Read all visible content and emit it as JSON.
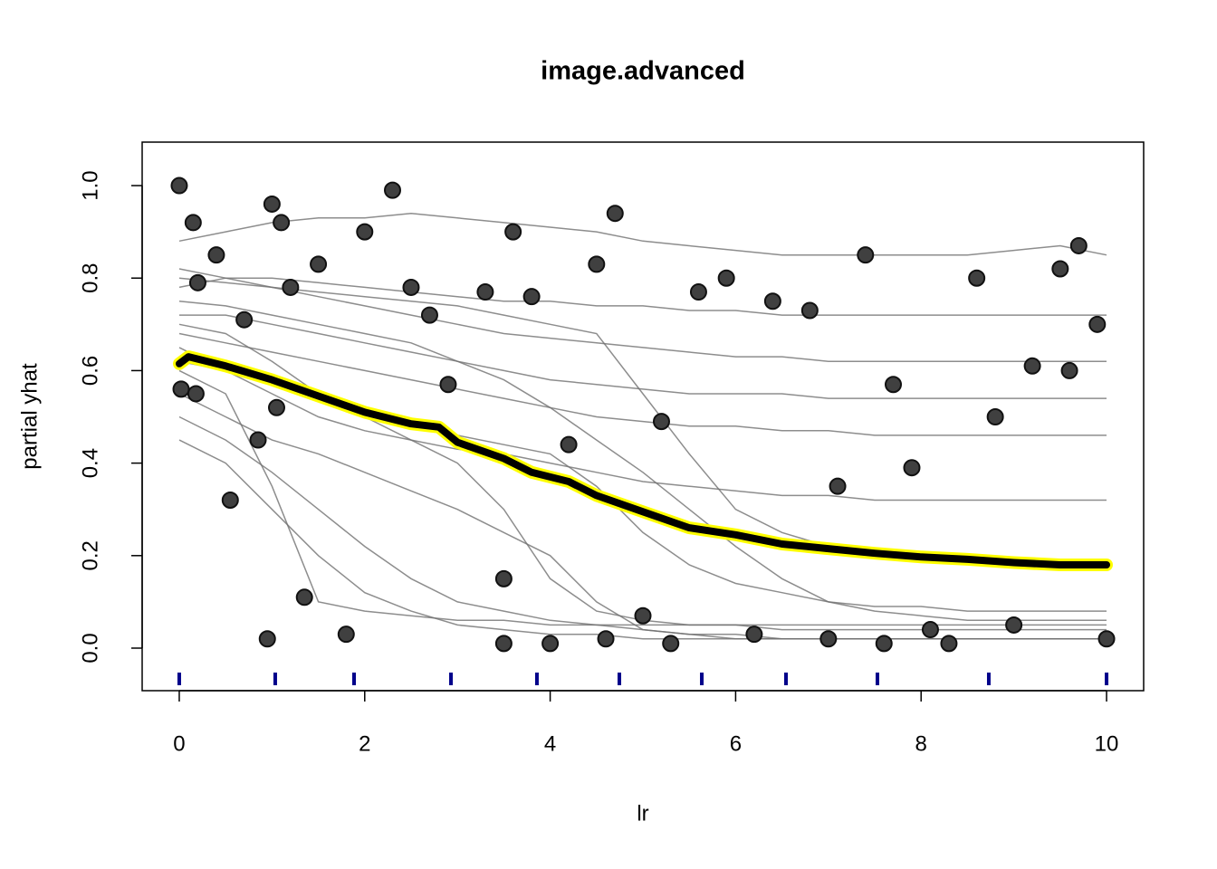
{
  "chart_data": {
    "type": "ice",
    "title": "image.advanced",
    "x_label": "lr",
    "y_label": "partial yhat",
    "xlim": [
      -0.4,
      10.4
    ],
    "ylim": [
      -0.092,
      1.094
    ],
    "xticks": [
      0,
      2,
      4,
      6,
      8,
      10
    ],
    "yticks": [
      {
        "value": 0,
        "label": "0.0"
      },
      0.2,
      0.4,
      0.6,
      0.8,
      {
        "value": 1,
        "label": "1.0"
      }
    ],
    "ice_color": "#707070",
    "ice_x": [
      0,
      0.5,
      1,
      1.5,
      2,
      2.5,
      3,
      3.5,
      4,
      4.5,
      5,
      5.5,
      6,
      6.5,
      7,
      7.5,
      8,
      8.5,
      9,
      9.5,
      10
    ],
    "ice_lines": [
      {
        "values": [
          0.88,
          0.9,
          0.92,
          0.93,
          0.93,
          0.94,
          0.93,
          0.92,
          0.91,
          0.9,
          0.88,
          0.87,
          0.86,
          0.85,
          0.85,
          0.85,
          0.85,
          0.85,
          0.86,
          0.87,
          0.85
        ]
      },
      {
        "values": [
          0.78,
          0.8,
          0.8,
          0.79,
          0.78,
          0.77,
          0.76,
          0.75,
          0.75,
          0.74,
          0.74,
          0.73,
          0.73,
          0.72,
          0.72,
          0.72,
          0.72,
          0.72,
          0.72,
          0.72,
          0.72
        ]
      },
      {
        "values": [
          0.72,
          0.72,
          0.7,
          0.68,
          0.66,
          0.64,
          0.62,
          0.6,
          0.58,
          0.57,
          0.56,
          0.55,
          0.55,
          0.55,
          0.54,
          0.54,
          0.54,
          0.54,
          0.54,
          0.54,
          0.54
        ]
      },
      {
        "values": [
          0.65,
          0.6,
          0.55,
          0.5,
          0.47,
          0.45,
          0.43,
          0.42,
          0.4,
          0.38,
          0.36,
          0.35,
          0.34,
          0.33,
          0.33,
          0.32,
          0.32,
          0.32,
          0.32,
          0.32,
          0.32
        ]
      },
      {
        "values": [
          0.6,
          0.55,
          0.35,
          0.1,
          0.08,
          0.07,
          0.06,
          0.06,
          0.05,
          0.05,
          0.05,
          0.05,
          0.05,
          0.05,
          0.05,
          0.05,
          0.05,
          0.05,
          0.05,
          0.05,
          0.05
        ]
      },
      {
        "values": [
          0.7,
          0.68,
          0.62,
          0.55,
          0.5,
          0.45,
          0.4,
          0.3,
          0.15,
          0.08,
          0.06,
          0.05,
          0.05,
          0.04,
          0.04,
          0.04,
          0.04,
          0.04,
          0.04,
          0.04,
          0.04
        ]
      },
      {
        "values": [
          0.55,
          0.5,
          0.45,
          0.42,
          0.38,
          0.34,
          0.3,
          0.25,
          0.2,
          0.1,
          0.04,
          0.03,
          0.02,
          0.02,
          0.02,
          0.02,
          0.02,
          0.02,
          0.02,
          0.02,
          0.02
        ]
      },
      {
        "values": [
          0.75,
          0.74,
          0.72,
          0.7,
          0.68,
          0.66,
          0.62,
          0.58,
          0.52,
          0.45,
          0.38,
          0.3,
          0.22,
          0.15,
          0.1,
          0.08,
          0.07,
          0.06,
          0.06,
          0.06,
          0.06
        ]
      },
      {
        "values": [
          0.5,
          0.45,
          0.38,
          0.3,
          0.22,
          0.15,
          0.1,
          0.08,
          0.06,
          0.05,
          0.04,
          0.03,
          0.03,
          0.02,
          0.02,
          0.02,
          0.02,
          0.02,
          0.02,
          0.02,
          0.02
        ]
      },
      {
        "values": [
          0.82,
          0.8,
          0.78,
          0.76,
          0.74,
          0.72,
          0.7,
          0.68,
          0.67,
          0.66,
          0.65,
          0.64,
          0.63,
          0.63,
          0.62,
          0.62,
          0.62,
          0.62,
          0.62,
          0.62,
          0.62
        ]
      },
      {
        "values": [
          0.62,
          0.6,
          0.57,
          0.54,
          0.51,
          0.48,
          0.46,
          0.44,
          0.42,
          0.35,
          0.25,
          0.18,
          0.14,
          0.12,
          0.1,
          0.09,
          0.09,
          0.08,
          0.08,
          0.08,
          0.08
        ]
      },
      {
        "values": [
          0.68,
          0.66,
          0.64,
          0.62,
          0.6,
          0.58,
          0.56,
          0.54,
          0.52,
          0.5,
          0.49,
          0.48,
          0.48,
          0.47,
          0.47,
          0.46,
          0.46,
          0.46,
          0.46,
          0.46,
          0.46
        ]
      },
      {
        "values": [
          0.45,
          0.4,
          0.3,
          0.2,
          0.12,
          0.08,
          0.05,
          0.04,
          0.03,
          0.03,
          0.02,
          0.02,
          0.02,
          0.02,
          0.02,
          0.02,
          0.02,
          0.02,
          0.02,
          0.02,
          0.02
        ]
      },
      {
        "values": [
          0.8,
          0.79,
          0.78,
          0.77,
          0.76,
          0.75,
          0.74,
          0.72,
          0.7,
          0.68,
          0.55,
          0.42,
          0.3,
          0.25,
          0.22,
          0.2,
          0.2,
          0.19,
          0.19,
          0.19,
          0.19
        ]
      }
    ],
    "mean": {
      "color": "#000000",
      "outline_color": "#ffff00",
      "x": [
        0,
        0.1,
        0.5,
        1,
        1.5,
        2,
        2.5,
        2.8,
        3,
        3.5,
        3.8,
        4.2,
        4.5,
        5,
        5.5,
        6,
        6.5,
        7,
        7.5,
        8,
        8.5,
        9,
        9.5,
        10
      ],
      "values": [
        0.615,
        0.63,
        0.61,
        0.58,
        0.545,
        0.51,
        0.485,
        0.478,
        0.445,
        0.41,
        0.38,
        0.36,
        0.33,
        0.295,
        0.26,
        0.245,
        0.225,
        0.215,
        0.205,
        0.197,
        0.192,
        0.185,
        0.18,
        0.18
      ]
    },
    "points": {
      "color": "#404040",
      "x": [
        0,
        0.02,
        0.15,
        0.18,
        0.2,
        0.4,
        0.55,
        0.7,
        0.85,
        0.95,
        1.0,
        1.05,
        1.1,
        1.2,
        1.35,
        1.5,
        1.8,
        2.0,
        2.3,
        2.5,
        2.7,
        2.9,
        3.3,
        3.5,
        3.6,
        3.8,
        4.2,
        4.5,
        4.7,
        5.0,
        5.2,
        5.6,
        5.9,
        6.4,
        6.8,
        7.1,
        7.4,
        7.7,
        7.9,
        8.1,
        8.6,
        8.8,
        9.2,
        9.5,
        9.6,
        9.7,
        9.9,
        10.0,
        3.5,
        4.0,
        4.6,
        5.3,
        6.2,
        7.0,
        7.6,
        8.3,
        9.0
      ],
      "y": [
        1.0,
        0.56,
        0.92,
        0.55,
        0.79,
        0.85,
        0.32,
        0.71,
        0.45,
        0.02,
        0.96,
        0.52,
        0.92,
        0.78,
        0.11,
        0.83,
        0.03,
        0.9,
        0.99,
        0.78,
        0.72,
        0.57,
        0.77,
        0.15,
        0.9,
        0.76,
        0.44,
        0.83,
        0.94,
        0.07,
        0.49,
        0.77,
        0.8,
        0.75,
        0.73,
        0.35,
        0.85,
        0.57,
        0.39,
        0.04,
        0.8,
        0.5,
        0.61,
        0.82,
        0.6,
        0.87,
        0.7,
        0.02,
        0.01,
        0.01,
        0.02,
        0.01,
        0.03,
        0.02,
        0.01,
        0.01,
        0.05
      ]
    },
    "rug": [
      0,
      1.035,
      1.885,
      2.93,
      3.857,
      4.746,
      5.635,
      6.543,
      7.529,
      8.73,
      10
    ],
    "rug_color": "#00008b"
  }
}
